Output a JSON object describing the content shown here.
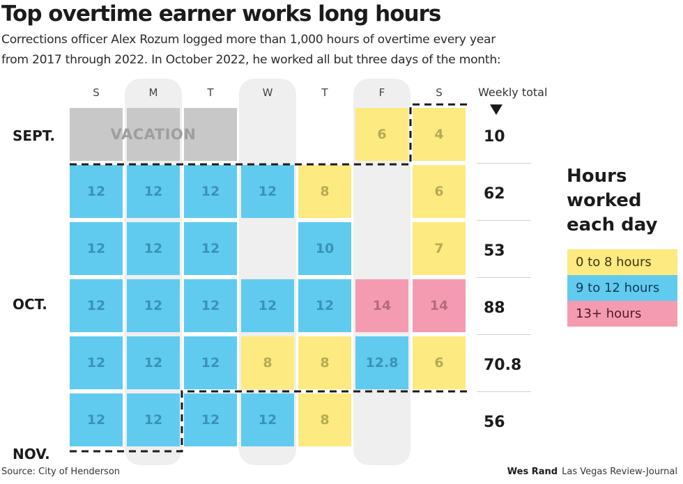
{
  "title": "Top overtime earner works long hours",
  "subtitle_lines": [
    "Corrections officer Alex Rozum logged more than 1,000 hours of overtime every year",
    "from 2017 through 2022. In October 2022, he worked all but three days of the month:"
  ],
  "colors": {
    "yellow": "#fdea80",
    "blue": "#61cbef",
    "pink": "#f59bb1",
    "vacation_gray": "#c8c8c8",
    "column_highlight": "#efefef"
  },
  "chart_data": {
    "type": "heatmap",
    "title": "Top overtime earner works long hours",
    "days": [
      "S",
      "M",
      "T",
      "W",
      "T",
      "F",
      "S"
    ],
    "highlighted_days": [
      1,
      3,
      5
    ],
    "month_labels": [
      {
        "label": "SEPT.",
        "week": 0
      },
      {
        "label": "OCT.",
        "week": 3
      },
      {
        "label": "NOV.",
        "week": 5
      }
    ],
    "vacation_label": "VACATION",
    "weekly_total_header": "Weekly total",
    "weeks": [
      {
        "cells": [
          "vacation",
          "vacation",
          "vacation",
          null,
          null,
          "6",
          "4"
        ],
        "total": "10"
      },
      {
        "cells": [
          "12",
          "12",
          "12",
          "12",
          "8",
          null,
          "6"
        ],
        "total": "62"
      },
      {
        "cells": [
          "12",
          "12",
          "12",
          null,
          "10",
          null,
          "7"
        ],
        "total": "53"
      },
      {
        "cells": [
          "12",
          "12",
          "12",
          "12",
          "12",
          "14",
          "14"
        ],
        "total": "88"
      },
      {
        "cells": [
          "12",
          "12",
          "12",
          "8",
          "8",
          "12.8",
          "6"
        ],
        "total": "70.8"
      },
      {
        "cells": [
          "12",
          "12",
          "12",
          "12",
          "8",
          null,
          null
        ],
        "total": "56"
      }
    ],
    "legend": {
      "title_lines": [
        "Hours",
        "worked",
        "each day"
      ],
      "items": [
        {
          "label": "0 to 8 hours",
          "color": "#fdea80",
          "text_color": "#3a3413"
        },
        {
          "label": "9 to 12 hours",
          "color": "#61cbef",
          "text_color": "#113a52"
        },
        {
          "label": "13+ hours",
          "color": "#f59bb1",
          "text_color": "#4a1a28"
        }
      ]
    }
  },
  "footer": {
    "source": "Source: City of Henderson",
    "author": "Wes Rand",
    "publication": "Las Vegas Review-Journal"
  }
}
